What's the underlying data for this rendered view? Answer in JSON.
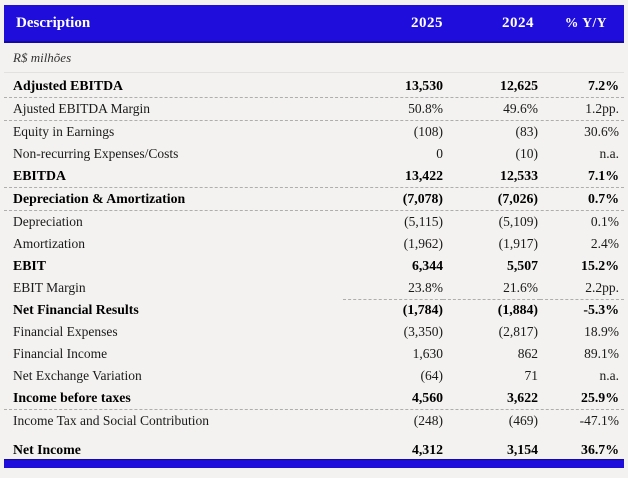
{
  "colors": {
    "accent_blue": "#1f0edb",
    "divider_gray": "#aeaeae",
    "background": "#f3f2f0"
  },
  "header": {
    "description_label": "Description",
    "col_2025_label": "2025",
    "col_2024_label": "2024",
    "col_yoy_label": "% Y/Y"
  },
  "unit_label": "R$ milhões",
  "table": {
    "rows": [
      {
        "label": "Adjusted EBITDA",
        "y2025": "13,530",
        "y2024": "12,625",
        "yoy": "7.2%",
        "bold": true,
        "divider": "full"
      },
      {
        "label": "Ajusted EBITDA Margin",
        "y2025": "50.8%",
        "y2024": "49.6%",
        "yoy": "1.2pp.",
        "bold": false,
        "divider": "full"
      },
      {
        "label": "Equity in Earnings",
        "y2025": "(108)",
        "y2024": "(83)",
        "yoy": "30.6%",
        "bold": false,
        "divider": "none"
      },
      {
        "label": "Non-recurring Expenses/Costs",
        "y2025": "0",
        "y2024": "(10)",
        "yoy": "n.a.",
        "bold": false,
        "divider": "none"
      },
      {
        "label": "EBITDA",
        "y2025": "13,422",
        "y2024": "12,533",
        "yoy": "7.1%",
        "bold": true,
        "divider": "full"
      },
      {
        "label": "Depreciation & Amortization",
        "y2025": "(7,078)",
        "y2024": "(7,026)",
        "yoy": "0.7%",
        "bold": true,
        "divider": "full"
      },
      {
        "label": "Depreciation",
        "y2025": "(5,115)",
        "y2024": "(5,109)",
        "yoy": "0.1%",
        "bold": false,
        "divider": "none"
      },
      {
        "label": "Amortization",
        "y2025": "(1,962)",
        "y2024": "(1,917)",
        "yoy": "2.4%",
        "bold": false,
        "divider": "none"
      },
      {
        "label": "EBIT",
        "y2025": "6,344",
        "y2024": "5,507",
        "yoy": "15.2%",
        "bold": true,
        "divider": "none"
      },
      {
        "label": "EBIT Margin",
        "y2025": "23.8%",
        "y2024": "21.6%",
        "yoy": "2.2pp.",
        "bold": false,
        "divider": "numbers"
      },
      {
        "label": "Net Financial Results",
        "y2025": "(1,784)",
        "y2024": "(1,884)",
        "yoy": "-5.3%",
        "bold": true,
        "divider": "none"
      },
      {
        "label": "Financial Expenses",
        "y2025": "(3,350)",
        "y2024": "(2,817)",
        "yoy": "18.9%",
        "bold": false,
        "divider": "none"
      },
      {
        "label": "Financial Income",
        "y2025": "1,630",
        "y2024": "862",
        "yoy": "89.1%",
        "bold": false,
        "divider": "none"
      },
      {
        "label": "Net Exchange Variation",
        "y2025": "(64)",
        "y2024": "71",
        "yoy": "n.a.",
        "bold": false,
        "divider": "none"
      },
      {
        "label": "Income before taxes",
        "y2025": "4,560",
        "y2024": "3,622",
        "yoy": "25.9%",
        "bold": true,
        "divider": "full"
      },
      {
        "label": "Income Tax and Social Contribution",
        "y2025": "(248)",
        "y2024": "(469)",
        "yoy": "-47.1%",
        "bold": false,
        "divider": "none"
      },
      {
        "label": "Net Income",
        "y2025": "4,312",
        "y2024": "3,154",
        "yoy": "36.7%",
        "bold": true,
        "divider": "full",
        "gap_before": true
      }
    ]
  }
}
